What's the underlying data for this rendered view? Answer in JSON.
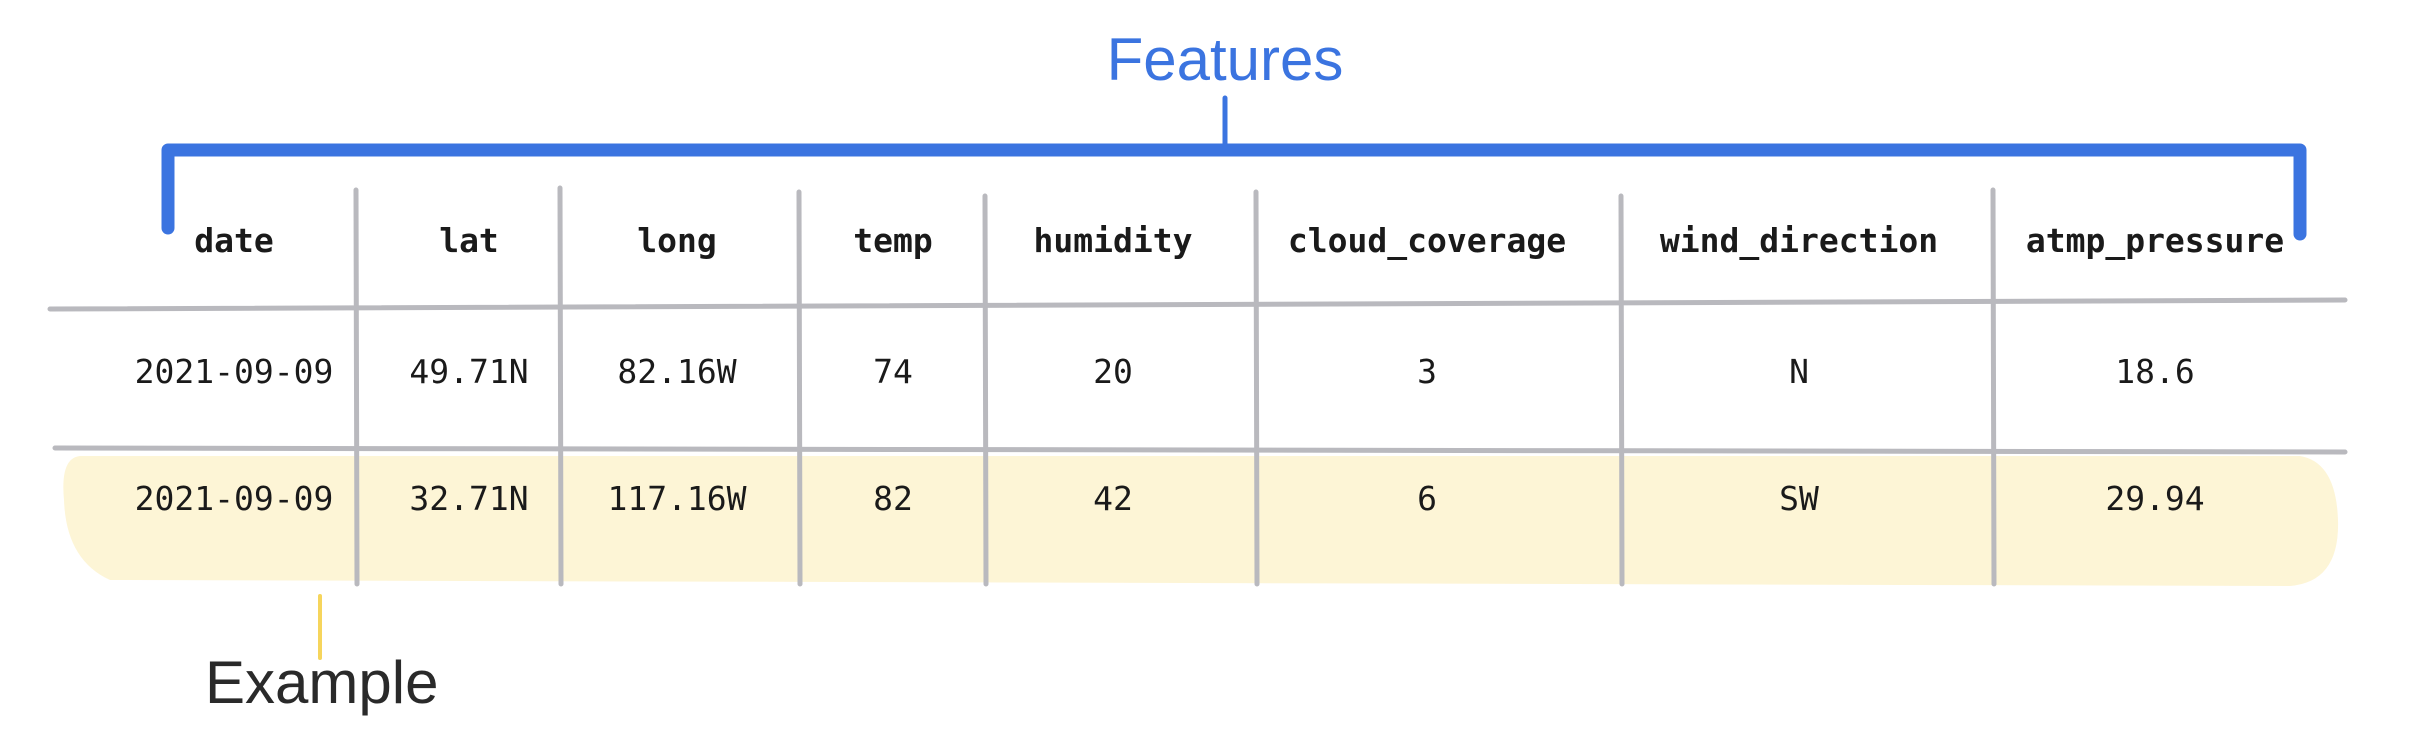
{
  "features_label": "Features",
  "example_label": "Example",
  "colors": {
    "bracket": "#3b74e0",
    "highlight": "#fdf5d6",
    "pointer_example": "#f6d55c",
    "grid": "#b9b9be"
  },
  "table": {
    "columns": [
      "date",
      "lat",
      "long",
      "temp",
      "humidity",
      "cloud_coverage",
      "wind_direction",
      "atmp_pressure"
    ],
    "rows": [
      [
        "2021-09-09",
        "49.71N",
        "82.16W",
        "74",
        "20",
        "3",
        "N",
        "18.6"
      ],
      [
        "2021-09-09",
        "32.71N",
        "117.16W",
        "82",
        "42",
        "6",
        "SW",
        "29.94"
      ]
    ],
    "highlighted_row": 1
  }
}
